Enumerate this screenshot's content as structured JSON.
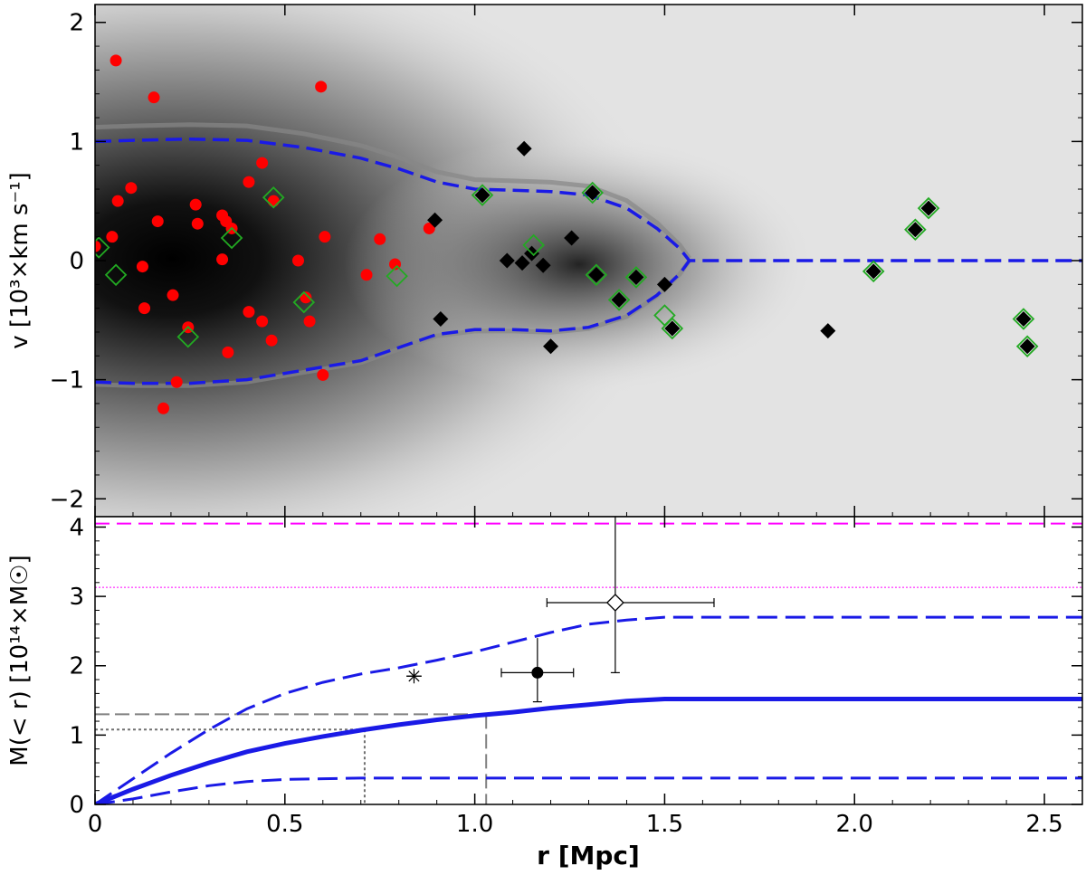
{
  "chart_data": [
    {
      "type": "scatter",
      "panel": "top",
      "xlim": [
        0,
        2.6
      ],
      "ylim": [
        -2.15,
        2.15
      ],
      "ylabel": "v [10³×km s⁻¹]",
      "yticks": [
        -2,
        -1,
        0,
        1,
        2
      ],
      "yticklabels": [
        "−2",
        "−1",
        "0",
        "1",
        "2"
      ],
      "background": "grayscale density map",
      "series": [
        {
          "marker": "red-circle",
          "color": "#ff0000",
          "points": [
            [
              0.0,
              0.12
            ],
            [
              0.045,
              0.2
            ],
            [
              0.055,
              1.68
            ],
            [
              0.06,
              0.5
            ],
            [
              0.095,
              0.61
            ],
            [
              0.125,
              -0.05
            ],
            [
              0.13,
              -0.4
            ],
            [
              0.155,
              1.37
            ],
            [
              0.165,
              0.33
            ],
            [
              0.18,
              -1.24
            ],
            [
              0.205,
              -0.29
            ],
            [
              0.215,
              -1.02
            ],
            [
              0.245,
              -0.56
            ],
            [
              0.265,
              0.47
            ],
            [
              0.27,
              0.31
            ],
            [
              0.335,
              0.38
            ],
            [
              0.335,
              0.01
            ],
            [
              0.345,
              0.33
            ],
            [
              0.35,
              -0.77
            ],
            [
              0.36,
              0.27
            ],
            [
              0.405,
              0.66
            ],
            [
              0.405,
              -0.43
            ],
            [
              0.44,
              -0.51
            ],
            [
              0.44,
              0.82
            ],
            [
              0.465,
              -0.67
            ],
            [
              0.47,
              0.5
            ],
            [
              0.535,
              0.0
            ],
            [
              0.555,
              -0.31
            ],
            [
              0.565,
              -0.51
            ],
            [
              0.595,
              1.46
            ],
            [
              0.6,
              -0.96
            ],
            [
              0.605,
              0.2
            ],
            [
              0.715,
              -0.12
            ],
            [
              0.75,
              0.18
            ],
            [
              0.79,
              -0.03
            ],
            [
              0.88,
              0.27
            ]
          ]
        },
        {
          "marker": "black-diamond",
          "color": "#000000",
          "points": [
            [
              0.895,
              0.34
            ],
            [
              0.91,
              -0.49
            ],
            [
              1.02,
              0.55
            ],
            [
              1.085,
              0.0
            ],
            [
              1.125,
              -0.02
            ],
            [
              1.13,
              0.94
            ],
            [
              1.15,
              0.06
            ],
            [
              1.18,
              -0.04
            ],
            [
              1.2,
              -0.72
            ],
            [
              1.255,
              0.19
            ],
            [
              1.31,
              0.57
            ],
            [
              1.32,
              -0.12
            ],
            [
              1.38,
              -0.33
            ],
            [
              1.425,
              -0.14
            ],
            [
              1.5,
              -0.2
            ],
            [
              1.52,
              -0.57
            ],
            [
              1.93,
              -0.59
            ],
            [
              2.05,
              -0.09
            ],
            [
              2.16,
              0.26
            ],
            [
              2.195,
              0.44
            ],
            [
              2.445,
              -0.49
            ],
            [
              2.455,
              -0.72
            ]
          ]
        },
        {
          "marker": "green-open-diamond",
          "color": "#22aa22",
          "points": [
            [
              0.01,
              0.11
            ],
            [
              0.055,
              -0.12
            ],
            [
              0.245,
              -0.64
            ],
            [
              0.36,
              0.19
            ],
            [
              0.47,
              0.53
            ],
            [
              0.55,
              -0.35
            ],
            [
              0.795,
              -0.13
            ],
            [
              1.02,
              0.55
            ],
            [
              1.155,
              0.13
            ],
            [
              1.31,
              0.57
            ],
            [
              1.32,
              -0.12
            ],
            [
              1.38,
              -0.33
            ],
            [
              1.425,
              -0.14
            ],
            [
              1.5,
              -0.46
            ],
            [
              1.52,
              -0.57
            ],
            [
              2.05,
              -0.09
            ],
            [
              2.16,
              0.26
            ],
            [
              2.195,
              0.44
            ],
            [
              2.445,
              -0.49
            ],
            [
              2.455,
              -0.72
            ]
          ]
        }
      ],
      "caustic_upper": [
        [
          0,
          1.0
        ],
        [
          0.1,
          1.01
        ],
        [
          0.25,
          1.02
        ],
        [
          0.4,
          1.01
        ],
        [
          0.55,
          0.95
        ],
        [
          0.7,
          0.86
        ],
        [
          0.8,
          0.77
        ],
        [
          0.9,
          0.66
        ],
        [
          1.0,
          0.6
        ],
        [
          1.1,
          0.59
        ],
        [
          1.2,
          0.58
        ],
        [
          1.3,
          0.55
        ],
        [
          1.4,
          0.44
        ],
        [
          1.48,
          0.27
        ],
        [
          1.54,
          0.1
        ],
        [
          1.565,
          0.0
        ],
        [
          2.6,
          0.0
        ]
      ],
      "caustic_lower": [
        [
          0,
          -1.02
        ],
        [
          0.1,
          -1.03
        ],
        [
          0.25,
          -1.03
        ],
        [
          0.4,
          -1.0
        ],
        [
          0.55,
          -0.92
        ],
        [
          0.7,
          -0.84
        ],
        [
          0.8,
          -0.73
        ],
        [
          0.9,
          -0.62
        ],
        [
          1.0,
          -0.58
        ],
        [
          1.1,
          -0.58
        ],
        [
          1.2,
          -0.59
        ],
        [
          1.3,
          -0.56
        ],
        [
          1.4,
          -0.46
        ],
        [
          1.48,
          -0.29
        ],
        [
          1.54,
          -0.11
        ],
        [
          1.565,
          0.0
        ]
      ]
    },
    {
      "type": "line",
      "panel": "bottom",
      "xlim": [
        0,
        2.6
      ],
      "ylim": [
        0,
        4.15
      ],
      "xlabel": "r [Mpc]",
      "ylabel": "M(< r) [10¹⁴×M☉]",
      "xticks": [
        0,
        0.5,
        1.0,
        1.5,
        2.0,
        2.5
      ],
      "xticklabels": [
        "0",
        "0.5",
        "1.0",
        "1.5",
        "2.0",
        "2.5"
      ],
      "yticks": [
        0,
        1,
        2,
        3,
        4
      ],
      "yticklabels": [
        "0",
        "1",
        "2",
        "3",
        "4"
      ],
      "series": [
        {
          "style": "solid-blue-thick",
          "x": [
            0,
            0.1,
            0.2,
            0.3,
            0.4,
            0.5,
            0.6,
            0.7,
            0.8,
            0.9,
            1.0,
            1.1,
            1.2,
            1.3,
            1.4,
            1.5,
            2.6
          ],
          "y": [
            0,
            0.22,
            0.42,
            0.6,
            0.76,
            0.88,
            0.98,
            1.07,
            1.15,
            1.22,
            1.28,
            1.33,
            1.39,
            1.44,
            1.49,
            1.52,
            1.52
          ]
        },
        {
          "style": "dashed-blue",
          "x": [
            0,
            0.1,
            0.2,
            0.3,
            0.4,
            0.5,
            0.6,
            0.7,
            0.8,
            0.9,
            1.0,
            1.1,
            1.2,
            1.3,
            1.4,
            1.5,
            2.6
          ],
          "y": [
            0,
            0.37,
            0.74,
            1.08,
            1.38,
            1.6,
            1.76,
            1.88,
            1.97,
            2.08,
            2.2,
            2.34,
            2.48,
            2.6,
            2.66,
            2.7,
            2.7
          ]
        },
        {
          "style": "dashed-blue",
          "x": [
            0,
            0.1,
            0.2,
            0.3,
            0.4,
            0.5,
            0.6,
            0.7,
            1.5,
            2.6
          ],
          "y": [
            0,
            0.08,
            0.18,
            0.27,
            0.33,
            0.36,
            0.37,
            0.38,
            0.38,
            0.38
          ]
        }
      ],
      "hlines": [
        {
          "y": 4.05,
          "style": "dashed-magenta",
          "color": "#ff00ff"
        },
        {
          "y": 3.13,
          "style": "dotted-magenta",
          "color": "#ff00ff"
        }
      ],
      "reference_lines": [
        {
          "style": "dashed-gray",
          "x": 1.03,
          "y": 1.3
        },
        {
          "style": "dotted-gray",
          "x": 0.71,
          "y": 1.08
        }
      ],
      "points": [
        {
          "marker": "open-diamond",
          "x": 1.37,
          "y": 2.91,
          "xerr": [
            0.18,
            0.26
          ],
          "yerr": [
            1.01,
            1.29
          ]
        },
        {
          "marker": "filled-circle",
          "x": 1.165,
          "y": 1.9,
          "xerr": [
            0.095,
            0.095
          ],
          "yerr": [
            0.42,
            0.5
          ]
        },
        {
          "marker": "asterisk",
          "x": 0.84,
          "y": 1.85,
          "xerr": [
            0.02,
            0.02
          ],
          "yerr": [
            0.06,
            0.06
          ]
        }
      ]
    }
  ]
}
